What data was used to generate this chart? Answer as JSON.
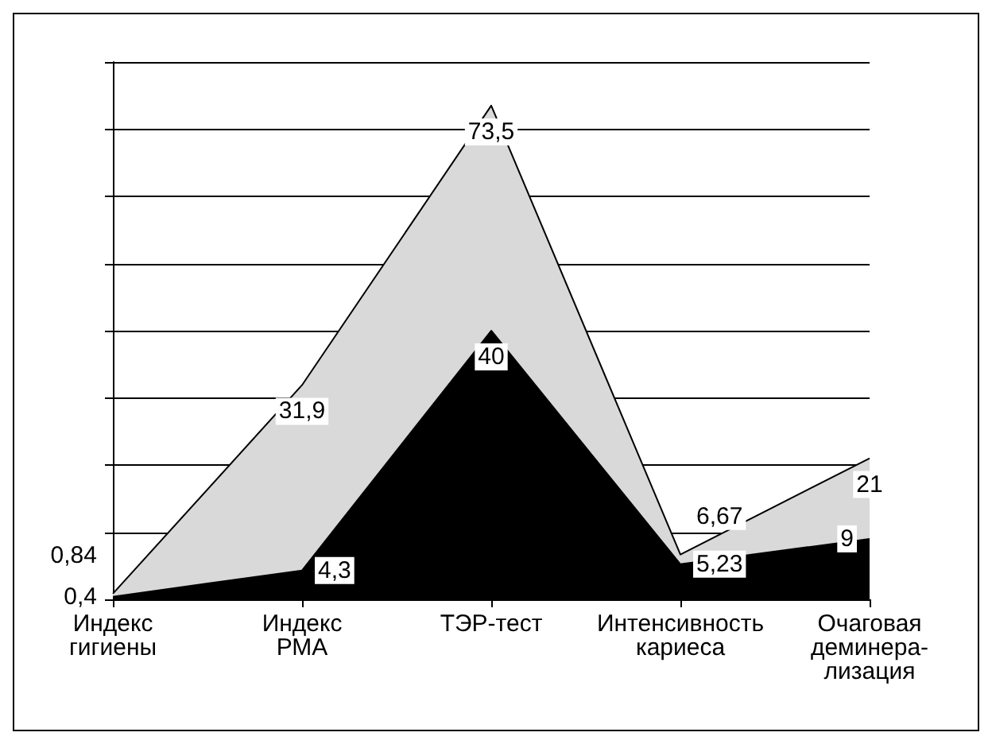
{
  "chart_data": {
    "type": "area",
    "categories": [
      "Индекс\nгигиены",
      "Индекс\nРМА",
      "ТЭР-тест",
      "Интенсивность\nкариеса",
      "Очаговая\nдеминера-\nлизация"
    ],
    "series": [
      {
        "color": "#d9d9d9",
        "values": [
          0.84,
          31.9,
          73.5,
          6.67,
          21
        ],
        "value_labels": [
          "0,84",
          "31,9",
          "73,5",
          "6,67",
          "21"
        ]
      },
      {
        "color": "#000000",
        "values": [
          0.4,
          4.3,
          40,
          5.23,
          9
        ],
        "value_labels": [
          "0,4",
          "4,3",
          "40",
          "5,23",
          "9"
        ]
      }
    ],
    "grid": "y",
    "tick_labels": "x"
  }
}
